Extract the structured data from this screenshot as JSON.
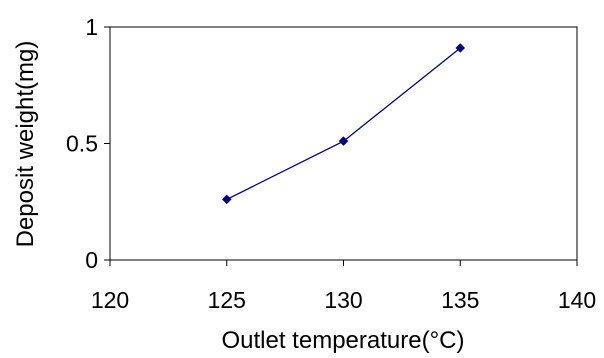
{
  "chart_data": {
    "type": "line",
    "xlabel": "Outlet temperature(°C)",
    "ylabel": "Deposit weight(mg)",
    "xlim": [
      120,
      140
    ],
    "ylim": [
      0,
      1
    ],
    "x_ticks": [
      {
        "value": 120,
        "label": "120"
      },
      {
        "value": 125,
        "label": "125"
      },
      {
        "value": 130,
        "label": "130"
      },
      {
        "value": 135,
        "label": "135"
      },
      {
        "value": 140,
        "label": "140"
      }
    ],
    "y_ticks": [
      {
        "value": 0,
        "label": "0"
      },
      {
        "value": 0.5,
        "label": "0.5"
      },
      {
        "value": 1,
        "label": "1"
      }
    ],
    "grid": false,
    "legend": "none",
    "series": [
      {
        "color": "#000080",
        "marker": "diamond",
        "x": [
          125,
          130,
          135
        ],
        "y": [
          0.26,
          0.51,
          0.91
        ]
      }
    ]
  }
}
